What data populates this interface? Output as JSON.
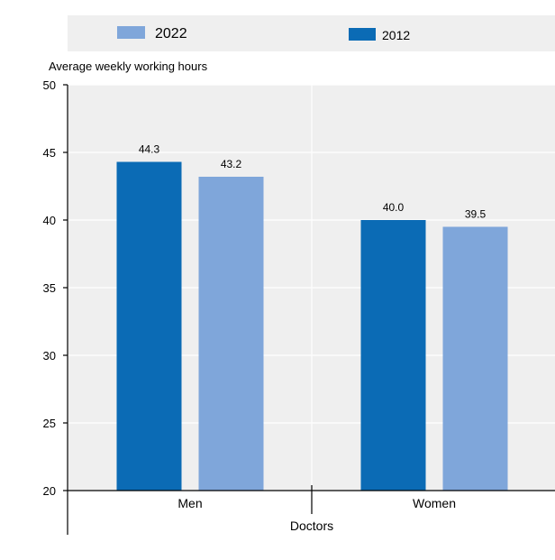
{
  "chart_data": {
    "type": "bar",
    "ylabel": "Average weekly working hours",
    "xlabel": "Doctors",
    "categories": [
      "Men",
      "Women"
    ],
    "series": [
      {
        "name": "2012",
        "color": "#0b6bb5",
        "values": [
          44.3,
          40.0
        ],
        "labels": [
          "44.3",
          "40.0"
        ]
      },
      {
        "name": "2022",
        "color": "#7fa6da",
        "values": [
          43.2,
          39.5
        ],
        "labels": [
          "43.2",
          "39.5"
        ]
      }
    ],
    "ylim": [
      20,
      50
    ],
    "yticks": [
      20,
      25,
      30,
      35,
      40,
      45,
      50
    ],
    "grid": true,
    "legend_position": "top"
  }
}
